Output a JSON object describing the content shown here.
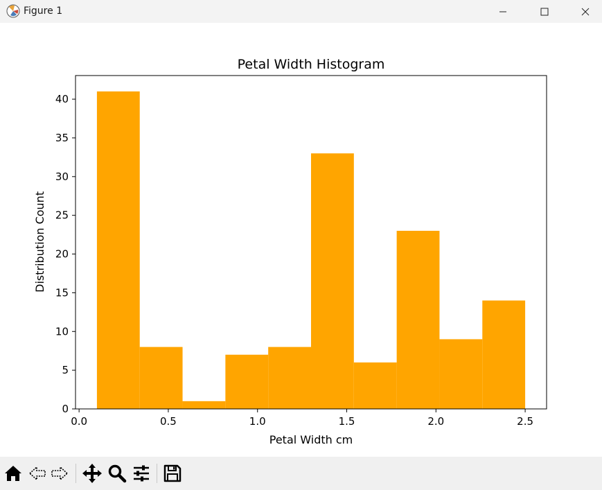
{
  "window": {
    "title": "Figure 1",
    "icons": [
      "app-icon",
      "minimize-icon",
      "maximize-icon",
      "close-icon"
    ]
  },
  "toolbar": {
    "buttons": [
      "home-icon",
      "back-icon",
      "forward-icon",
      "pan-icon",
      "zoom-icon",
      "configure-subplots-icon",
      "save-icon"
    ]
  },
  "colors": {
    "bar": "#ffa500",
    "axes": "#000000",
    "toolbar_bg": "#f0f0f0",
    "titlebar_bg": "#f3f3f3"
  },
  "chart_data": {
    "type": "bar",
    "title": "Petal Width Histogram",
    "xlabel": "Petal Width cm",
    "ylabel": "Distribution Count",
    "bin_edges": [
      0.1,
      0.34,
      0.58,
      0.82,
      1.06,
      1.3,
      1.54,
      1.78,
      2.02,
      2.26,
      2.5
    ],
    "values": [
      41,
      8,
      1,
      7,
      8,
      33,
      6,
      23,
      9,
      14
    ],
    "xlim": [
      -0.02,
      2.62
    ],
    "ylim": [
      0,
      43.05
    ],
    "xticks": [
      0.0,
      0.5,
      1.0,
      1.5,
      2.0,
      2.5
    ],
    "xtick_labels": [
      "0.0",
      "0.5",
      "1.0",
      "1.5",
      "2.0",
      "2.5"
    ],
    "yticks": [
      0,
      5,
      10,
      15,
      20,
      25,
      30,
      35,
      40
    ],
    "ytick_labels": [
      "0",
      "5",
      "10",
      "15",
      "20",
      "25",
      "30",
      "35",
      "40"
    ],
    "grid": false,
    "legend": "none"
  }
}
